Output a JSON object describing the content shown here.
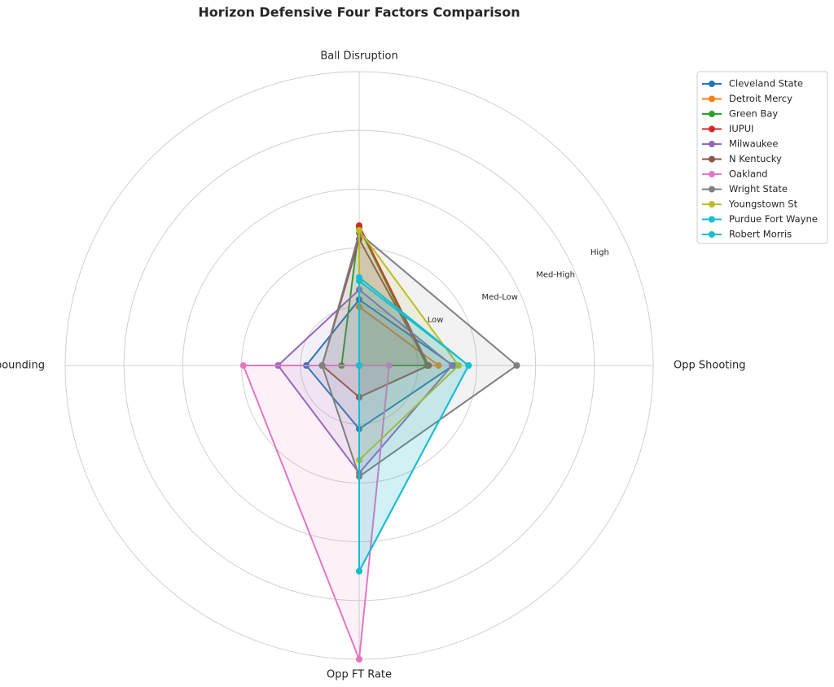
{
  "chart_data": {
    "type": "radar",
    "title": "Horizon Defensive Four Factors Comparison",
    "categories": [
      "Ball Disruption",
      "Opp Shooting",
      "Opp FT Rate",
      "Def Rebounding"
    ],
    "ylim": [
      0,
      5
    ],
    "yticks": [
      {
        "value": 1,
        "label": "Low"
      },
      {
        "value": 2,
        "label": "Med-Low"
      },
      {
        "value": 3,
        "label": "Med-High"
      },
      {
        "value": 4,
        "label": "High"
      }
    ],
    "grid": true,
    "legend": "upper right",
    "series": [
      {
        "name": "Cleveland State",
        "color": "#1f77b4",
        "values": [
          1.12,
          1.6,
          1.08,
          0.9
        ]
      },
      {
        "name": "Detroit Mercy",
        "color": "#ff7f0e",
        "values": [
          1.0,
          1.35,
          0,
          0
        ]
      },
      {
        "name": "Green Bay",
        "color": "#2ca02c",
        "values": [
          2.35,
          1.15,
          0,
          0.3
        ]
      },
      {
        "name": "IUPUI",
        "color": "#d62728",
        "values": [
          2.38,
          1.18,
          0.54,
          0
        ]
      },
      {
        "name": "Milwaukee",
        "color": "#9467bd",
        "values": [
          1.29,
          1.58,
          1.83,
          1.38
        ]
      },
      {
        "name": "N Kentucky",
        "color": "#8c564b",
        "values": [
          2.15,
          1.18,
          0.54,
          0.63
        ]
      },
      {
        "name": "Oakland",
        "color": "#e377c2",
        "values": [
          0,
          0.51,
          5.0,
          1.97
        ]
      },
      {
        "name": "Wright State",
        "color": "#7f7f7f",
        "values": [
          2.25,
          2.68,
          1.89,
          0.63
        ]
      },
      {
        "name": "Youngstown St",
        "color": "#bcbd22",
        "values": [
          2.3,
          1.69,
          1.61,
          0
        ]
      },
      {
        "name": "Purdue Fort Wayne",
        "color": "#17becf",
        "values": [
          1.5,
          1.86,
          3.5,
          0
        ]
      },
      {
        "name": "Robert Morris",
        "color": "#17becf",
        "values": [
          1.44,
          1.86,
          3.5,
          0
        ]
      }
    ]
  }
}
